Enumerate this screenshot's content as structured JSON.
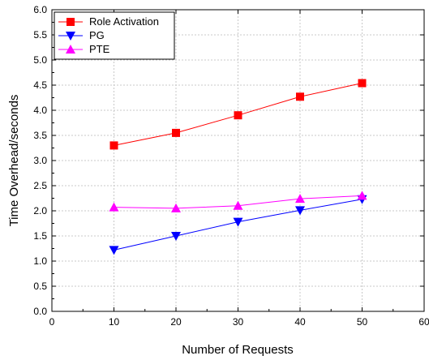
{
  "chart_data": {
    "type": "line",
    "xlabel": "Number of Requests",
    "ylabel": "Time Overhead/seconds",
    "xlim": [
      0,
      60
    ],
    "ylim": [
      0.0,
      6.0
    ],
    "x_ticks": [
      "0",
      "10",
      "20",
      "30",
      "40",
      "50",
      "60"
    ],
    "y_ticks": [
      "0.0",
      "0.5",
      "1.0",
      "1.5",
      "2.0",
      "2.5",
      "3.0",
      "3.5",
      "4.0",
      "4.5",
      "5.0",
      "5.5",
      "6.0"
    ],
    "grid": true,
    "legend_position": "top-left",
    "x": [
      10,
      20,
      30,
      40,
      50
    ],
    "series": [
      {
        "name": "Role Activation",
        "values": [
          3.3,
          3.55,
          3.9,
          4.27,
          4.54
        ],
        "color": "#ff0000",
        "marker": "square"
      },
      {
        "name": "PG",
        "values": [
          1.22,
          1.5,
          1.78,
          2.01,
          2.23
        ],
        "color": "#0000ff",
        "marker": "triangle-down"
      },
      {
        "name": "PTE",
        "values": [
          2.07,
          2.05,
          2.1,
          2.24,
          2.3
        ],
        "color": "#ff00ff",
        "marker": "triangle-up"
      }
    ]
  }
}
